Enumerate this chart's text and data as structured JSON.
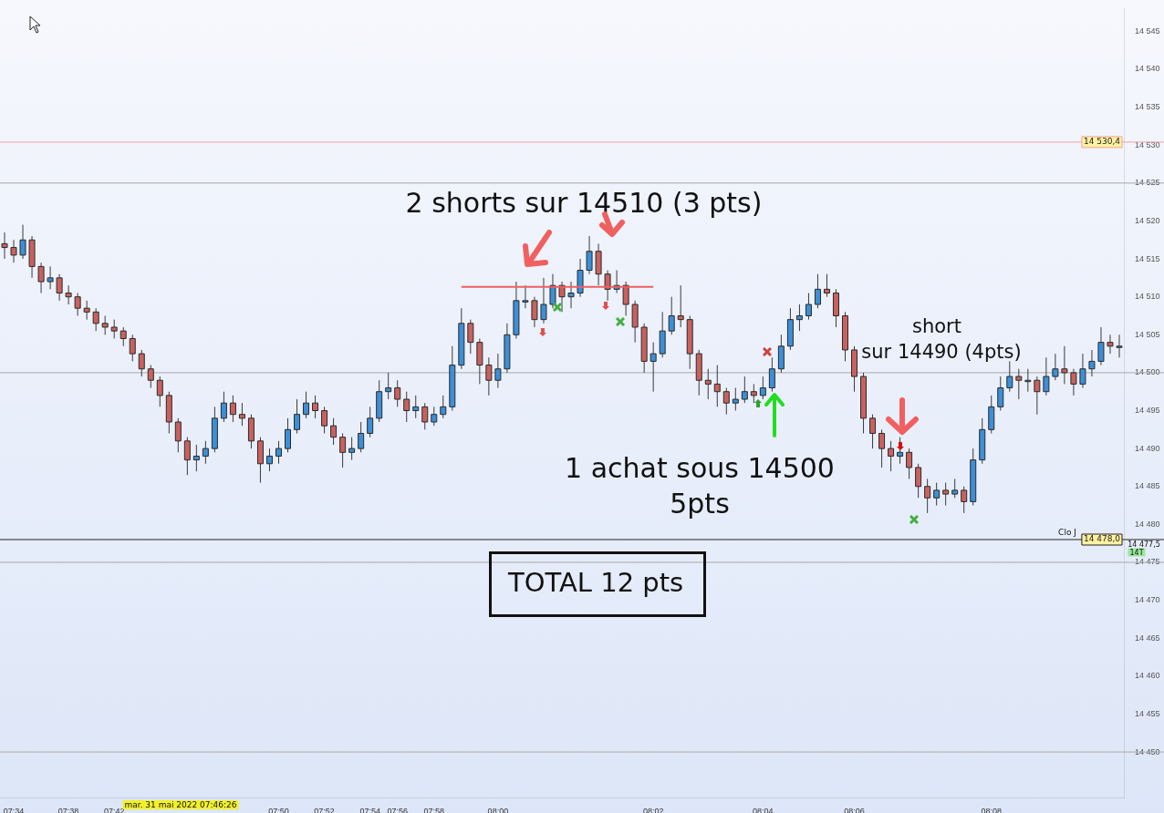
{
  "chart_data": {
    "type": "candlestick",
    "categories": [
      null,
      "07:34",
      null,
      null,
      null,
      null,
      null,
      "07:38",
      null,
      null,
      null,
      null,
      "07:42",
      null,
      null,
      null,
      null,
      null,
      null,
      null,
      null,
      null,
      null,
      null,
      null,
      null,
      null,
      null,
      null,
      null,
      "07:50",
      null,
      null,
      null,
      null,
      "07:52",
      null,
      null,
      null,
      null,
      "07:54",
      null,
      null,
      "07:56",
      null,
      null,
      null,
      "07:58",
      null,
      null,
      null,
      null,
      null,
      null,
      "08:00",
      null,
      null,
      null,
      null,
      null,
      null,
      null,
      null,
      null,
      null,
      null,
      null,
      null,
      null,
      null,
      null,
      "08:02",
      null,
      null,
      null,
      null,
      null,
      null,
      null,
      null,
      null,
      null,
      null,
      "08:04",
      null,
      null,
      null,
      null,
      null,
      null,
      null,
      null,
      null,
      "08:06",
      null,
      null,
      null,
      null,
      null,
      null,
      null,
      null,
      null,
      null,
      null,
      null,
      null,
      null,
      "08:08",
      null,
      null,
      null,
      null,
      null,
      null,
      null,
      null,
      null,
      null,
      null,
      null,
      null,
      null
    ],
    "ohlc": [
      [
        14517.0,
        14518.5,
        14515.0,
        14516.5
      ],
      [
        14516.5,
        14517.5,
        14514.5,
        14515.5
      ],
      [
        14515.5,
        14519.5,
        14515.0,
        14517.5
      ],
      [
        14517.5,
        14518.0,
        14512.5,
        14514.0
      ],
      [
        14514.0,
        14514.5,
        14510.5,
        14512.0
      ],
      [
        14512.0,
        14514.0,
        14511.0,
        14512.5
      ],
      [
        14512.5,
        14513.0,
        14509.5,
        14510.5
      ],
      [
        14510.5,
        14511.5,
        14509.0,
        14510.0
      ],
      [
        14510.0,
        14510.5,
        14507.5,
        14508.5
      ],
      [
        14508.5,
        14509.5,
        14507.0,
        14508.0
      ],
      [
        14508.0,
        14508.5,
        14505.5,
        14506.5
      ],
      [
        14506.5,
        14507.5,
        14505.0,
        14506.0
      ],
      [
        14506.0,
        14507.0,
        14504.5,
        14505.5
      ],
      [
        14505.5,
        14506.0,
        14503.5,
        14504.5
      ],
      [
        14504.5,
        14505.0,
        14501.5,
        14502.5
      ],
      [
        14502.5,
        14503.0,
        14499.5,
        14500.5
      ],
      [
        14500.5,
        14501.0,
        14498.0,
        14499.0
      ],
      [
        14499.0,
        14499.5,
        14495.5,
        14497.0
      ],
      [
        14497.0,
        14497.5,
        14492.0,
        14493.5
      ],
      [
        14493.5,
        14494.0,
        14489.5,
        14491.0
      ],
      [
        14491.0,
        14491.5,
        14486.5,
        14488.5
      ],
      [
        14488.5,
        14490.5,
        14487.0,
        14489.0
      ],
      [
        14489.0,
        14491.0,
        14488.0,
        14490.0
      ],
      [
        14490.0,
        14495.5,
        14489.5,
        14494.0
      ],
      [
        14494.0,
        14497.5,
        14493.5,
        14496.0
      ],
      [
        14496.0,
        14497.0,
        14493.5,
        14494.5
      ],
      [
        14494.5,
        14496.0,
        14493.0,
        14494.0
      ],
      [
        14494.0,
        14494.5,
        14490.0,
        14491.0
      ],
      [
        14491.0,
        14491.5,
        14485.5,
        14488.0
      ],
      [
        14488.0,
        14490.0,
        14487.0,
        14489.0
      ],
      [
        14489.0,
        14491.0,
        14488.0,
        14490.0
      ],
      [
        14490.0,
        14494.0,
        14489.5,
        14492.5
      ],
      [
        14492.5,
        14496.5,
        14492.0,
        14494.5
      ],
      [
        14494.5,
        14497.5,
        14494.0,
        14496.0
      ],
      [
        14496.0,
        14497.0,
        14494.0,
        14495.0
      ],
      [
        14495.0,
        14495.5,
        14492.0,
        14493.0
      ],
      [
        14493.0,
        14494.0,
        14490.5,
        14491.5
      ],
      [
        14491.5,
        14492.0,
        14487.5,
        14489.5
      ],
      [
        14489.5,
        14491.5,
        14488.5,
        14490.0
      ],
      [
        14490.0,
        14493.5,
        14489.5,
        14492.0
      ],
      [
        14492.0,
        14495.5,
        14491.5,
        14494.0
      ],
      [
        14494.0,
        14499.0,
        14493.5,
        14497.5
      ],
      [
        14497.5,
        14500.0,
        14496.5,
        14498.0
      ],
      [
        14498.0,
        14499.0,
        14495.5,
        14496.5
      ],
      [
        14496.5,
        14497.5,
        14493.5,
        14495.0
      ],
      [
        14495.0,
        14497.0,
        14494.0,
        14495.5
      ],
      [
        14495.5,
        14496.0,
        14492.5,
        14493.5
      ],
      [
        14493.5,
        14495.5,
        14493.0,
        14494.5
      ],
      [
        14494.5,
        14497.0,
        14494.0,
        14495.5
      ],
      [
        14495.5,
        14503.5,
        14495.0,
        14501.0
      ],
      [
        14501.0,
        14508.5,
        14500.5,
        14506.5
      ],
      [
        14506.5,
        14507.0,
        14502.5,
        14504.0
      ],
      [
        14504.0,
        14504.5,
        14498.5,
        14501.0
      ],
      [
        14501.0,
        14502.0,
        14497.0,
        14499.0
      ],
      [
        14499.0,
        14502.5,
        14498.0,
        14500.5
      ],
      [
        14500.5,
        14506.5,
        14500.0,
        14505.0
      ],
      [
        14505.0,
        14512.0,
        14504.5,
        14509.5
      ],
      [
        14509.5,
        14511.5,
        14508.5,
        14509.5
      ],
      [
        14509.5,
        14510.0,
        14506.0,
        14507.0
      ],
      [
        14507.0,
        14512.5,
        14506.5,
        14509.0
      ],
      [
        14509.0,
        14513.0,
        14508.5,
        14511.5
      ],
      [
        14511.5,
        14512.0,
        14508.0,
        14510.0
      ],
      [
        14510.0,
        14512.0,
        14508.5,
        14510.5
      ],
      [
        14510.5,
        14515.0,
        14510.0,
        14513.5
      ],
      [
        14513.5,
        14518.0,
        14513.0,
        14516.0
      ],
      [
        14516.0,
        14517.0,
        14511.5,
        14513.0
      ],
      [
        14513.0,
        14513.5,
        14509.5,
        14511.0
      ],
      [
        14511.0,
        14513.5,
        14510.5,
        14511.5
      ],
      [
        14511.5,
        14512.0,
        14507.5,
        14509.0
      ],
      [
        14509.0,
        14509.5,
        14504.0,
        14506.0
      ],
      [
        14506.0,
        14506.5,
        14500.0,
        14501.5
      ],
      [
        14501.5,
        14504.0,
        14497.5,
        14502.5
      ],
      [
        14502.5,
        14508.0,
        14502.0,
        14505.5
      ],
      [
        14505.5,
        14510.0,
        14505.0,
        14507.5
      ],
      [
        14507.5,
        14511.5,
        14506.0,
        14507.0
      ],
      [
        14507.0,
        14507.5,
        14500.5,
        14502.5
      ],
      [
        14502.5,
        14503.0,
        14497.0,
        14499.0
      ],
      [
        14499.0,
        14500.5,
        14496.5,
        14498.5
      ],
      [
        14498.5,
        14501.0,
        14495.5,
        14497.5
      ],
      [
        14497.5,
        14498.0,
        14494.5,
        14496.0
      ],
      [
        14496.0,
        14498.0,
        14495.0,
        14496.5
      ],
      [
        14496.5,
        14499.5,
        14496.0,
        14497.5
      ],
      [
        14497.5,
        14498.5,
        14496.0,
        14497.0
      ],
      [
        14497.0,
        14499.5,
        14496.5,
        14498.0
      ],
      [
        14498.0,
        14502.0,
        14497.5,
        14500.5
      ],
      [
        14500.5,
        14505.0,
        14500.0,
        14503.5
      ],
      [
        14503.5,
        14508.5,
        14503.0,
        14507.0
      ],
      [
        14507.0,
        14509.0,
        14505.5,
        14507.5
      ],
      [
        14507.5,
        14510.5,
        14507.0,
        14509.0
      ],
      [
        14509.0,
        14513.0,
        14508.5,
        14511.0
      ],
      [
        14511.0,
        14513.0,
        14510.0,
        14510.5
      ],
      [
        14510.5,
        14511.0,
        14506.0,
        14507.5
      ],
      [
        14507.5,
        14508.0,
        14501.5,
        14503.0
      ],
      [
        14503.0,
        14503.5,
        14497.5,
        14499.5
      ],
      [
        14499.5,
        14500.0,
        14492.0,
        14494.0
      ],
      [
        14494.0,
        14494.5,
        14490.0,
        14492.0
      ],
      [
        14492.0,
        14492.5,
        14487.5,
        14490.0
      ],
      [
        14490.0,
        14491.0,
        14487.0,
        14489.0
      ],
      [
        14489.0,
        14491.5,
        14488.0,
        14489.5
      ],
      [
        14489.5,
        14490.0,
        14486.0,
        14487.5
      ],
      [
        14487.5,
        14488.0,
        14483.5,
        14485.0
      ],
      [
        14485.0,
        14486.0,
        14481.5,
        14483.5
      ],
      [
        14483.5,
        14485.5,
        14482.5,
        14484.5
      ],
      [
        14484.5,
        14485.5,
        14482.5,
        14484.0
      ],
      [
        14484.0,
        14486.0,
        14483.5,
        14484.5
      ],
      [
        14484.5,
        14485.0,
        14481.5,
        14483.0
      ],
      [
        14483.0,
        14490.0,
        14482.5,
        14488.5
      ],
      [
        14488.5,
        14494.0,
        14488.0,
        14492.5
      ],
      [
        14492.5,
        14497.0,
        14492.0,
        14495.5
      ],
      [
        14495.5,
        14499.5,
        14495.0,
        14498.0
      ],
      [
        14498.0,
        14501.5,
        14497.5,
        14499.5
      ],
      [
        14499.5,
        14500.5,
        14496.5,
        14499.0
      ],
      [
        14499.0,
        14500.5,
        14497.5,
        14499.0
      ],
      [
        14499.0,
        14499.5,
        14494.5,
        14497.5
      ],
      [
        14497.5,
        14502.0,
        14497.0,
        14499.5
      ],
      [
        14499.5,
        14502.5,
        14499.0,
        14500.5
      ],
      [
        14500.5,
        14503.5,
        14498.5,
        14500.0
      ],
      [
        14500.0,
        14500.5,
        14497.0,
        14498.5
      ],
      [
        14498.5,
        14502.5,
        14498.0,
        14500.5
      ],
      [
        14500.5,
        14503.0,
        14499.5,
        14501.5
      ],
      [
        14501.5,
        14506.0,
        14501.0,
        14504.0
      ],
      [
        14504.0,
        14505.0,
        14502.5,
        14503.5
      ],
      [
        14503.5,
        14505.0,
        14502.0,
        14503.5
      ]
    ],
    "colors": [
      "#c8625f",
      "#c8625f",
      "#3d8fd6",
      "#c8625f",
      "#c8625f",
      "#3d8fd6",
      "#c8625f",
      "#c8625f",
      "#c8625f",
      "#c8625f",
      "#c8625f",
      "#c8625f",
      "#c8625f",
      "#c8625f",
      "#c8625f",
      "#c8625f",
      "#c8625f",
      "#c8625f",
      "#c8625f",
      "#c8625f",
      "#c8625f",
      "#3d8fd6",
      "#3d8fd6",
      "#3d8fd6",
      "#3d8fd6",
      "#c8625f",
      "#c8625f",
      "#c8625f",
      "#c8625f",
      "#3d8fd6",
      "#3d8fd6",
      "#3d8fd6",
      "#3d8fd6",
      "#3d8fd6",
      "#c8625f",
      "#c8625f",
      "#c8625f",
      "#c8625f",
      "#3d8fd6",
      "#3d8fd6",
      "#3d8fd6",
      "#3d8fd6",
      "#3d8fd6",
      "#c8625f",
      "#c8625f",
      "#3d8fd6",
      "#c8625f",
      "#3d8fd6",
      "#3d8fd6",
      "#3d8fd6",
      "#3d8fd6",
      "#c8625f",
      "#c8625f",
      "#c8625f",
      "#3d8fd6",
      "#3d8fd6",
      "#3d8fd6",
      "#3d8fd6",
      "#c8625f",
      "#3d8fd6",
      "#3d8fd6",
      "#c8625f",
      "#3d8fd6",
      "#3d8fd6",
      "#3d8fd6",
      "#c8625f",
      "#c8625f",
      "#3d8fd6",
      "#c8625f",
      "#c8625f",
      "#c8625f",
      "#3d8fd6",
      "#3d8fd6",
      "#3d8fd6",
      "#c8625f",
      "#c8625f",
      "#c8625f",
      "#c8625f",
      "#c8625f",
      "#c8625f",
      "#3d8fd6",
      "#3d8fd6",
      "#c8625f",
      "#3d8fd6",
      "#3d8fd6",
      "#3d8fd6",
      "#3d8fd6",
      "#3d8fd6",
      "#3d8fd6",
      "#3d8fd6",
      "#c8625f",
      "#c8625f",
      "#c8625f",
      "#c8625f",
      "#c8625f",
      "#c8625f",
      "#c8625f",
      "#c8625f",
      "#3d8fd6",
      "#c8625f",
      "#c8625f",
      "#c8625f",
      "#3d8fd6",
      "#c8625f",
      "#3d8fd6",
      "#c8625f",
      "#3d8fd6",
      "#3d8fd6",
      "#3d8fd6",
      "#3d8fd6",
      "#3d8fd6",
      "#c8625f",
      "#3d8fd6",
      "#c8625f",
      "#3d8fd6",
      "#3d8fd6",
      "#c8625f",
      "#c8625f",
      "#3d8fd6",
      "#3d8fd6",
      "#3d8fd6",
      "#c8625f",
      "#3d8fd6"
    ],
    "series": [
      {
        "type": "line",
        "color": "#f06060",
        "values": [
          null,
          null,
          null,
          null,
          null,
          null,
          null,
          null,
          null,
          null,
          null,
          null,
          null,
          null,
          null,
          null,
          null,
          null,
          null,
          null,
          null,
          null,
          null,
          null,
          null,
          null,
          null,
          null,
          null,
          null,
          null,
          null,
          null,
          null,
          null,
          null,
          null,
          null,
          null,
          null,
          null,
          null,
          null,
          null,
          null,
          null,
          null,
          null,
          null,
          null,
          14511.3,
          null,
          null,
          null,
          null,
          null,
          null,
          null,
          null,
          null,
          null,
          null,
          null,
          null,
          null,
          null,
          null,
          null,
          null,
          null,
          null,
          14511.3,
          null,
          null,
          null,
          null,
          null,
          null,
          null,
          null,
          null,
          null,
          null,
          null,
          null,
          null,
          null,
          null,
          null,
          null,
          null,
          null,
          null,
          null,
          null,
          null,
          null,
          null,
          null,
          null,
          null,
          null,
          null,
          null,
          null,
          null,
          null,
          null,
          null,
          null,
          null,
          null,
          null,
          null,
          null,
          null,
          null,
          null,
          null,
          null,
          null,
          null,
          null
        ]
      }
    ],
    "ylim": [
      14444,
      14548
    ],
    "yticks": [
      {
        "value": 14450,
        "label": "14 450"
      },
      {
        "value": 14455,
        "label": "14 455"
      },
      {
        "value": 14460,
        "label": "14 460"
      },
      {
        "value": 14465,
        "label": "14 465"
      },
      {
        "value": 14470,
        "label": "14 470"
      },
      {
        "value": 14475,
        "label": "14 475"
      },
      {
        "value": 14480,
        "label": "14 480"
      },
      {
        "value": 14485,
        "label": "14 485"
      },
      {
        "value": 14490,
        "label": "14 490"
      },
      {
        "value": 14495,
        "label": "14 495"
      },
      {
        "value": 14500,
        "label": "14 500"
      },
      {
        "value": 14505,
        "label": "14 505"
      },
      {
        "value": 14510,
        "label": "14 510"
      },
      {
        "value": 14515,
        "label": "14 515"
      },
      {
        "value": 14520,
        "label": "14 520"
      },
      {
        "value": 14525,
        "label": "14 525"
      },
      {
        "value": 14530,
        "label": "14 530"
      },
      {
        "value": 14535,
        "label": "14 535"
      },
      {
        "value": 14540,
        "label": "14 540"
      },
      {
        "value": 14545,
        "label": "14 545"
      }
    ],
    "grid": false,
    "legend": false,
    "ref_lines": [
      {
        "axis": "y",
        "value": 14530.4,
        "label": "14 530,4",
        "color": "#f4a0a0"
      },
      {
        "axis": "y",
        "value": 14478,
        "label": "14 478,0",
        "color": "#222222"
      },
      {
        "axis": "y",
        "value": 14525,
        "color": "#a8a8a8"
      },
      {
        "axis": "y",
        "value": 14500,
        "color": "#a8a8a8"
      },
      {
        "axis": "y",
        "value": 14475,
        "color": "#a8a8a8"
      },
      {
        "axis": "y",
        "value": 14450,
        "color": "#a8a8a8"
      }
    ],
    "annotations": [
      "2 shorts sur 14510 (3 pts)",
      "1 achat sous 14500",
      "5pts",
      "short",
      "sur 14490 (4pts)",
      "TOTAL 12 pts",
      "mar. 31 mai 2022 07:46:26",
      "Clo J",
      "14 477,5",
      "14T"
    ]
  }
}
